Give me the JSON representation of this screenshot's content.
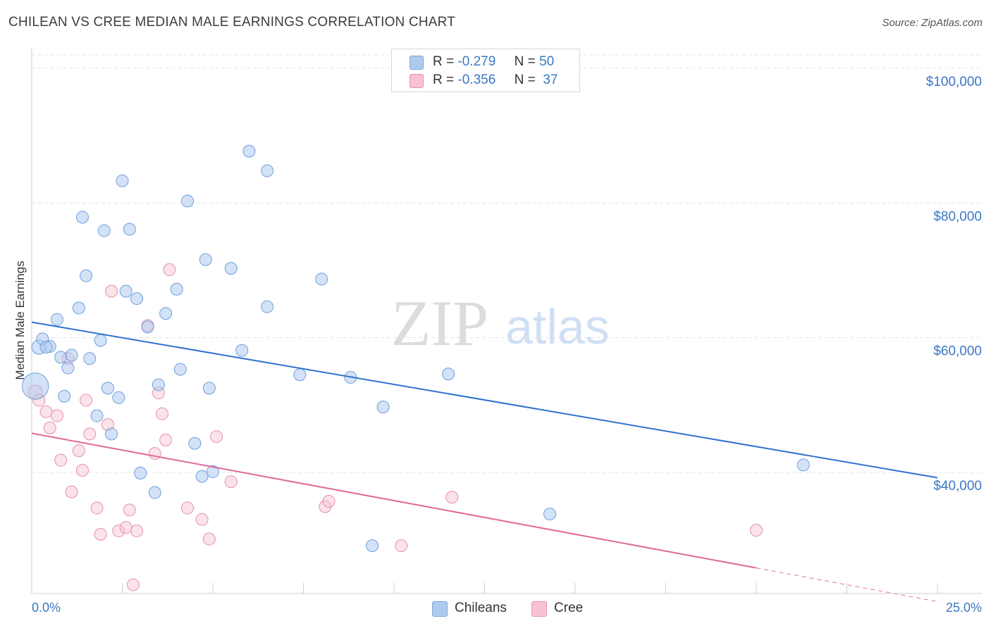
{
  "title": "CHILEAN VS CREE MEDIAN MALE EARNINGS CORRELATION CHART",
  "source": "Source: ZipAtlas.com",
  "watermark": {
    "zip": "ZIP",
    "atlas": "atlas"
  },
  "legend": {
    "rows": [
      {
        "r_label": "R =",
        "r_value": "-0.279",
        "n_label": "N =",
        "n_value": "50",
        "color": "#aecbee"
      },
      {
        "r_label": "R =",
        "r_value": "-0.356",
        "n_label": "N =",
        "n_value": "37",
        "color": "#f7c2d1"
      }
    ]
  },
  "bottom_legend": {
    "chileans": "Chileans",
    "cree": "Cree"
  },
  "colors": {
    "blue_fill": "#aecbee",
    "blue_line": "#2f72cf",
    "pink_fill": "#f7c2d1",
    "pink_line": "#e0699a",
    "tick": "#3b78c4"
  },
  "chart_data": {
    "type": "scatter",
    "title": "CHILEAN VS CREE MEDIAN MALE EARNINGS CORRELATION CHART",
    "xlabel": "",
    "ylabel": "Median Male Earnings",
    "xlim": [
      0,
      25
    ],
    "ylim": [
      22000,
      102000
    ],
    "x_tick_labels": [
      "0.0%",
      "25.0%"
    ],
    "y_ticks": [
      40000,
      60000,
      80000,
      100000
    ],
    "y_tick_labels": [
      "$40,000",
      "$60,000",
      "$80,000",
      "$100,000"
    ],
    "series": [
      {
        "name": "Chileans",
        "trend": {
          "x0": 0,
          "y0": 62300,
          "x1": 25,
          "y1": 39200
        },
        "points": [
          [
            0.1,
            52800,
            22
          ],
          [
            0.2,
            58600,
            12
          ],
          [
            0.3,
            59800,
            10
          ],
          [
            0.5,
            58700,
            10
          ],
          [
            0.7,
            62700,
            10
          ],
          [
            0.8,
            57100,
            10
          ],
          [
            0.9,
            51300,
            10
          ],
          [
            1.0,
            55500,
            10
          ],
          [
            1.1,
            57400,
            10
          ],
          [
            1.3,
            64400,
            10
          ],
          [
            1.4,
            77900,
            10
          ],
          [
            1.5,
            69200,
            10
          ],
          [
            1.6,
            56900,
            10
          ],
          [
            1.8,
            48400,
            10
          ],
          [
            1.9,
            59600,
            10
          ],
          [
            2.0,
            75900,
            10
          ],
          [
            2.1,
            52500,
            10
          ],
          [
            2.2,
            45700,
            10
          ],
          [
            2.4,
            51100,
            10
          ],
          [
            2.5,
            83300,
            10
          ],
          [
            2.6,
            66900,
            10
          ],
          [
            2.7,
            76100,
            10
          ],
          [
            2.9,
            65800,
            10
          ],
          [
            3.0,
            39900,
            10
          ],
          [
            3.2,
            61600,
            10
          ],
          [
            3.4,
            37000,
            10
          ],
          [
            3.5,
            53000,
            10
          ],
          [
            3.7,
            63600,
            10
          ],
          [
            4.0,
            67200,
            10
          ],
          [
            4.1,
            55300,
            10
          ],
          [
            4.3,
            80300,
            10
          ],
          [
            4.5,
            44300,
            10
          ],
          [
            4.7,
            39400,
            10
          ],
          [
            4.8,
            71600,
            10
          ],
          [
            4.9,
            52500,
            10
          ],
          [
            5.0,
            40100,
            10
          ],
          [
            5.5,
            70300,
            10
          ],
          [
            5.8,
            58100,
            10
          ],
          [
            6.0,
            87700,
            10
          ],
          [
            6.5,
            84800,
            10
          ],
          [
            6.5,
            64600,
            10
          ],
          [
            7.4,
            54500,
            10
          ],
          [
            8.0,
            68700,
            10
          ],
          [
            8.8,
            54100,
            10
          ],
          [
            9.4,
            29100,
            10
          ],
          [
            9.7,
            49700,
            10
          ],
          [
            11.5,
            54600,
            10
          ],
          [
            14.3,
            33800,
            10
          ],
          [
            21.3,
            41100,
            10
          ],
          [
            0.4,
            58600,
            10
          ]
        ]
      },
      {
        "name": "Cree",
        "trend": {
          "x0": 0,
          "y0": 45800,
          "x1": 20,
          "y1": 25800
        },
        "dashed_to": {
          "x": 25,
          "y": 20800
        },
        "points": [
          [
            0.1,
            51900,
            12
          ],
          [
            0.2,
            50700,
            10
          ],
          [
            0.4,
            49000,
            10
          ],
          [
            0.5,
            46600,
            10
          ],
          [
            0.7,
            48400,
            10
          ],
          [
            0.8,
            41800,
            10
          ],
          [
            1.0,
            56900,
            10
          ],
          [
            1.1,
            37100,
            10
          ],
          [
            1.3,
            43200,
            10
          ],
          [
            1.4,
            40300,
            10
          ],
          [
            1.5,
            50700,
            10
          ],
          [
            1.6,
            45700,
            10
          ],
          [
            1.8,
            34700,
            10
          ],
          [
            1.9,
            30800,
            10
          ],
          [
            2.1,
            47100,
            10
          ],
          [
            2.2,
            66900,
            10
          ],
          [
            2.4,
            31300,
            10
          ],
          [
            2.6,
            31800,
            10
          ],
          [
            2.7,
            34400,
            10
          ],
          [
            2.8,
            23300,
            10
          ],
          [
            2.9,
            31300,
            10
          ],
          [
            3.2,
            61800,
            10
          ],
          [
            3.4,
            42800,
            10
          ],
          [
            3.5,
            51800,
            10
          ],
          [
            3.6,
            48700,
            10
          ],
          [
            3.7,
            44800,
            10
          ],
          [
            3.8,
            70100,
            10
          ],
          [
            4.3,
            34700,
            10
          ],
          [
            4.7,
            33000,
            10
          ],
          [
            4.9,
            30100,
            10
          ],
          [
            5.1,
            45300,
            10
          ],
          [
            5.5,
            38600,
            10
          ],
          [
            8.1,
            34900,
            10
          ],
          [
            8.2,
            35700,
            10
          ],
          [
            10.2,
            29100,
            10
          ],
          [
            11.6,
            36300,
            10
          ],
          [
            20.0,
            31400,
            10
          ]
        ]
      }
    ]
  }
}
